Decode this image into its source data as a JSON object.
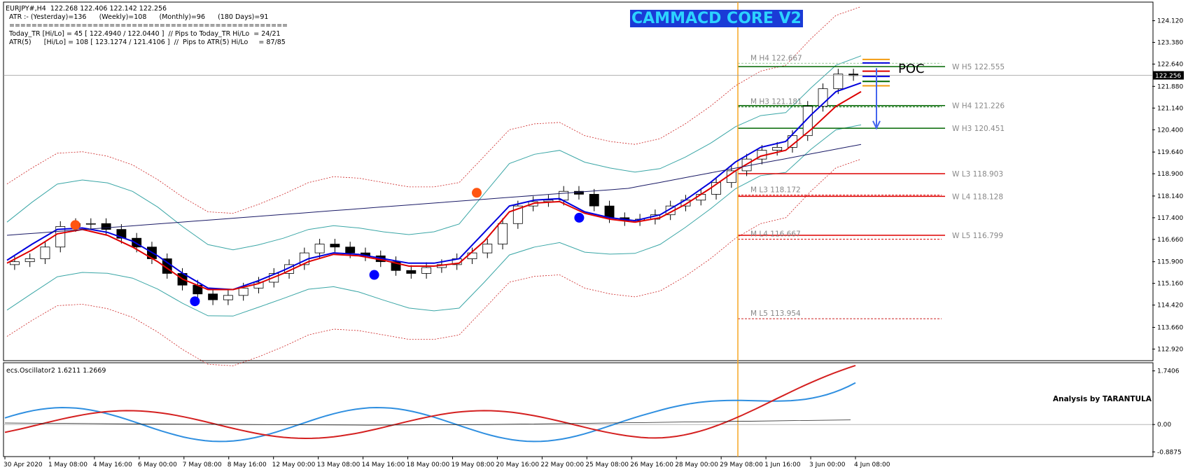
{
  "header": {
    "symbol_line": "EURJPY#,H4  122.268 122.406 122.142 122.256",
    "atr_line": "ATR :- (Yesterday)=136      (Weekly)=108      (Monthly)=96      (180 Days)=91",
    "separator": "==================================================",
    "today_tr_line": "Today_TR [Hi/Lo] = 45 [ 122.4940 / 122.0440 ]  // Pips to Today_TR Hi/Lo  = 24/21",
    "atr5_line": "ATR(5)      [Hi/Lo] = 108 [ 123.1274 / 121.4106 ]  //  Pips to ATR(5) Hi/Lo     = 87/85"
  },
  "banner": {
    "text": "CAMMACD CORE V2",
    "bg_color": "#1a3bd6",
    "text_color": "#2cd3ff"
  },
  "indicator_label": "ecs.Oscillator2 1.6211 1.2669",
  "signature": "Analysis by TARANTULA",
  "poc_label": "POC",
  "current_price_label": "122.256",
  "colors": {
    "blue_ma": "#0000dd",
    "red_ma": "#dd0000",
    "bollinger": "#3aa6a6",
    "long_ma": "#1a1a66",
    "dotted": "#cc2222",
    "vline": "#f5a623",
    "level_green": "#006600",
    "level_red": "#dd0000",
    "osc_blue": "#2f8fe0",
    "osc_red": "#d42020"
  },
  "chart_data": {
    "type": "line",
    "symbol": "EURJPY#",
    "timeframe": "H4",
    "y_ticks": [
      "124.120",
      "123.380",
      "122.640",
      "121.880",
      "121.140",
      "120.400",
      "119.640",
      "118.900",
      "118.140",
      "117.400",
      "116.660",
      "115.900",
      "115.160",
      "114.420",
      "113.660",
      "112.920"
    ],
    "ylim": [
      112.62,
      124.42
    ],
    "x_ticks": [
      "30 Apr 2020",
      "1 May 08:00",
      "4 May 16:00",
      "6 May 00:00",
      "7 May 08:00",
      "8 May 16:00",
      "12 May 00:00",
      "13 May 08:00",
      "14 May 16:00",
      "18 May 00:00",
      "19 May 08:00",
      "20 May 16:00",
      "22 May 00:00",
      "25 May 08:00",
      "26 May 16:00",
      "28 May 00:00",
      "29 May 08:00",
      "1 Jun 16:00",
      "3 Jun 00:00",
      "4 Jun 08:00"
    ],
    "close_prices": [
      115.9,
      116.0,
      116.4,
      117.1,
      117.2,
      117.2,
      117.0,
      116.7,
      116.4,
      116.0,
      115.5,
      115.1,
      114.8,
      114.6,
      114.75,
      115.0,
      115.2,
      115.5,
      115.8,
      116.2,
      116.5,
      116.4,
      116.2,
      116.1,
      115.9,
      115.6,
      115.5,
      115.7,
      115.8,
      116.0,
      116.2,
      116.5,
      117.2,
      117.8,
      117.95,
      118.0,
      118.3,
      118.2,
      117.8,
      117.4,
      117.3,
      117.35,
      117.5,
      117.8,
      118.0,
      118.2,
      118.6,
      119.0,
      119.4,
      119.7,
      119.8,
      120.2,
      121.2,
      121.8,
      122.3,
      122.25
    ],
    "blue_ma": [
      115.95,
      116.5,
      117.0,
      117.05,
      116.9,
      116.6,
      116.1,
      115.5,
      115.0,
      114.95,
      115.25,
      115.6,
      116.0,
      116.2,
      116.15,
      116.0,
      115.85,
      115.85,
      116.0,
      116.9,
      117.8,
      118.0,
      118.05,
      117.6,
      117.4,
      117.3,
      117.5,
      118.0,
      118.6,
      119.3,
      119.8,
      120.0,
      120.9,
      121.7,
      122.0
    ],
    "red_ma": [
      115.85,
      116.3,
      116.85,
      117.0,
      116.8,
      116.4,
      115.9,
      115.3,
      114.95,
      114.95,
      115.15,
      115.5,
      115.9,
      116.15,
      116.1,
      115.95,
      115.75,
      115.75,
      115.85,
      116.6,
      117.6,
      117.9,
      117.95,
      117.55,
      117.35,
      117.25,
      117.4,
      117.85,
      118.4,
      119.0,
      119.5,
      119.7,
      120.4,
      121.2,
      121.7
    ],
    "levels": [
      {
        "label": "W  H5 122.555",
        "value": 122.555,
        "color": "#006600"
      },
      {
        "label": "M  H4 122.667",
        "value": 122.667,
        "color": "#99cc99"
      },
      {
        "label": "W  H4 121.226",
        "value": 121.226,
        "color": "#006600"
      },
      {
        "label": "M  H3 121.181",
        "value": 121.181,
        "color": "#006600"
      },
      {
        "label": "W  H3 120.451",
        "value": 120.451,
        "color": "#006600"
      },
      {
        "label": "W  L3 118.903",
        "value": 118.903,
        "color": "#dd0000"
      },
      {
        "label": "W  L4 118.128",
        "value": 118.128,
        "color": "#dd0000"
      },
      {
        "label": "M  L3 118.172",
        "value": 118.172,
        "color": "#dd0000"
      },
      {
        "label": "W  L5 116.799",
        "value": 116.799,
        "color": "#dd0000"
      },
      {
        "label": "M  L4 116.667",
        "value": 116.667,
        "color": "#dd0000"
      },
      {
        "label": "M  L5 113.954",
        "value": 113.954,
        "color": "#cc2222"
      }
    ],
    "oscillator": {
      "label": "ecs.Oscillator2 1.6211 1.2669",
      "y_ticks": [
        "1.7406",
        "0.00",
        "-0.8875"
      ],
      "ylim": [
        -0.95,
        1.8
      ]
    }
  }
}
